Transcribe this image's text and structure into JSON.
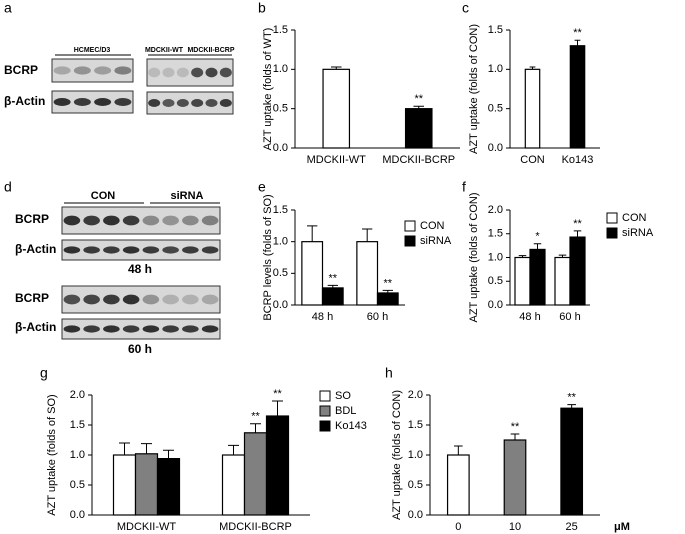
{
  "blots": [
    {
      "panel_label": "a",
      "headers": [
        "HCMEC/D3",
        "MDCKII-WT",
        "MDCKII-BCRP"
      ],
      "rows": [
        "BCRP",
        "β-Actin"
      ]
    },
    {
      "panel_label": "d",
      "headers": [
        "CON",
        "siRNA"
      ],
      "rows": [
        "BCRP",
        "β-Actin",
        "BCRP",
        "β-Actin"
      ],
      "times": [
        "48 h",
        "60 h"
      ]
    }
  ],
  "chart_data": [
    {
      "type": "bar",
      "panel_label": "b",
      "y_label": "AZT uptake (folds of WT)",
      "categories": [
        "MDCKII-WT",
        "MDCKII-BCRP"
      ],
      "values": [
        1.0,
        0.5
      ],
      "errors": [
        0.03,
        0.03
      ],
      "colors": [
        "#ffffff",
        "#000000"
      ],
      "annotations": [
        {
          "index": 1,
          "text": "**"
        }
      ],
      "ylim": [
        0,
        1.5
      ],
      "yticks": [
        {
          "value": 0,
          "label": "0.0"
        },
        0.5,
        {
          "value": 1,
          "label": "1.0"
        },
        1.5
      ]
    },
    {
      "type": "bar",
      "panel_label": "c",
      "y_label": "AZT uptake (folds of CON)",
      "categories": [
        "CON",
        "Ko143"
      ],
      "values": [
        1.0,
        1.3
      ],
      "errors": [
        0.03,
        0.07
      ],
      "colors": [
        "#ffffff",
        "#000000"
      ],
      "annotations": [
        {
          "index": 1,
          "text": "**"
        }
      ],
      "ylim": [
        0,
        1.5
      ],
      "yticks": [
        {
          "value": 0,
          "label": "0.0"
        },
        0.5,
        {
          "value": 1,
          "label": "1.0"
        },
        1.5
      ]
    },
    {
      "type": "grouped-bar",
      "panel_label": "e",
      "y_label": "BCRP  levels (folds of SO)",
      "categories": [
        "48 h",
        "60 h"
      ],
      "series": [
        {
          "name": "CON",
          "color": "#ffffff",
          "values": [
            1.0,
            1.0
          ],
          "errors": [
            0.25,
            0.2
          ]
        },
        {
          "name": "siRNA",
          "color": "#000000",
          "values": [
            0.27,
            0.19
          ],
          "errors": [
            0.04,
            0.04
          ]
        }
      ],
      "annotations": [
        {
          "series": 1,
          "index": 0,
          "text": "**"
        },
        {
          "series": 1,
          "index": 1,
          "text": "**"
        }
      ],
      "ylim": [
        0,
        1.5
      ],
      "yticks": [
        {
          "value": 0,
          "label": "0.0"
        },
        0.5,
        {
          "value": 1,
          "label": "1.0"
        },
        1.5
      ]
    },
    {
      "type": "grouped-bar",
      "panel_label": "f",
      "y_label": "AZT uptake (folds of CON)",
      "categories": [
        "48 h",
        "60 h"
      ],
      "series": [
        {
          "name": "CON",
          "color": "#ffffff",
          "values": [
            1.0,
            1.0
          ],
          "errors": [
            0.04,
            0.05
          ]
        },
        {
          "name": "siRNA",
          "color": "#000000",
          "values": [
            1.17,
            1.43
          ],
          "errors": [
            0.12,
            0.13
          ]
        }
      ],
      "annotations": [
        {
          "series": 1,
          "index": 0,
          "text": "*"
        },
        {
          "series": 1,
          "index": 1,
          "text": "**"
        }
      ],
      "ylim": [
        0,
        2
      ],
      "yticks": [
        {
          "value": 0,
          "label": "0.0"
        },
        0.5,
        {
          "value": 1,
          "label": "1.0"
        },
        1.5,
        {
          "value": 2,
          "label": "2.0"
        }
      ]
    },
    {
      "type": "grouped-bar",
      "panel_label": "g",
      "y_label": "AZT uptake (folds of SO)",
      "categories": [
        "MDCKII-WT",
        "MDCKII-BCRP"
      ],
      "series": [
        {
          "name": "SO",
          "color": "#ffffff",
          "values": [
            1.0,
            1.0
          ],
          "errors": [
            0.2,
            0.16
          ]
        },
        {
          "name": "BDL",
          "color": "#808080",
          "values": [
            1.02,
            1.37
          ],
          "errors": [
            0.17,
            0.15
          ]
        },
        {
          "name": "Ko143",
          "color": "#000000",
          "values": [
            0.94,
            1.65
          ],
          "errors": [
            0.14,
            0.25
          ]
        }
      ],
      "annotations": [
        {
          "series": 1,
          "index": 1,
          "text": "**"
        },
        {
          "series": 2,
          "index": 1,
          "text": "**"
        }
      ],
      "ylim": [
        0,
        2
      ],
      "yticks": [
        {
          "value": 0,
          "label": "0.0"
        },
        0.5,
        {
          "value": 1,
          "label": "1.0"
        },
        1.5,
        {
          "value": 2,
          "label": "2.0"
        }
      ]
    },
    {
      "type": "bar",
      "panel_label": "h",
      "y_label": "AZT  uptake (folds of CON)",
      "x_label": "μM",
      "categories": [
        "0",
        "10",
        "25"
      ],
      "values": [
        1.0,
        1.25,
        1.78
      ],
      "errors": [
        0.15,
        0.1,
        0.06
      ],
      "colors": [
        "#ffffff",
        "#808080",
        "#000000"
      ],
      "annotations": [
        {
          "index": 1,
          "text": "**"
        },
        {
          "index": 2,
          "text": "**"
        }
      ],
      "ylim": [
        0,
        2
      ],
      "yticks": [
        {
          "value": 0,
          "label": "0.0"
        },
        0.5,
        {
          "value": 1,
          "label": "1.0"
        },
        1.5,
        {
          "value": 2,
          "label": "2.0"
        }
      ]
    }
  ]
}
